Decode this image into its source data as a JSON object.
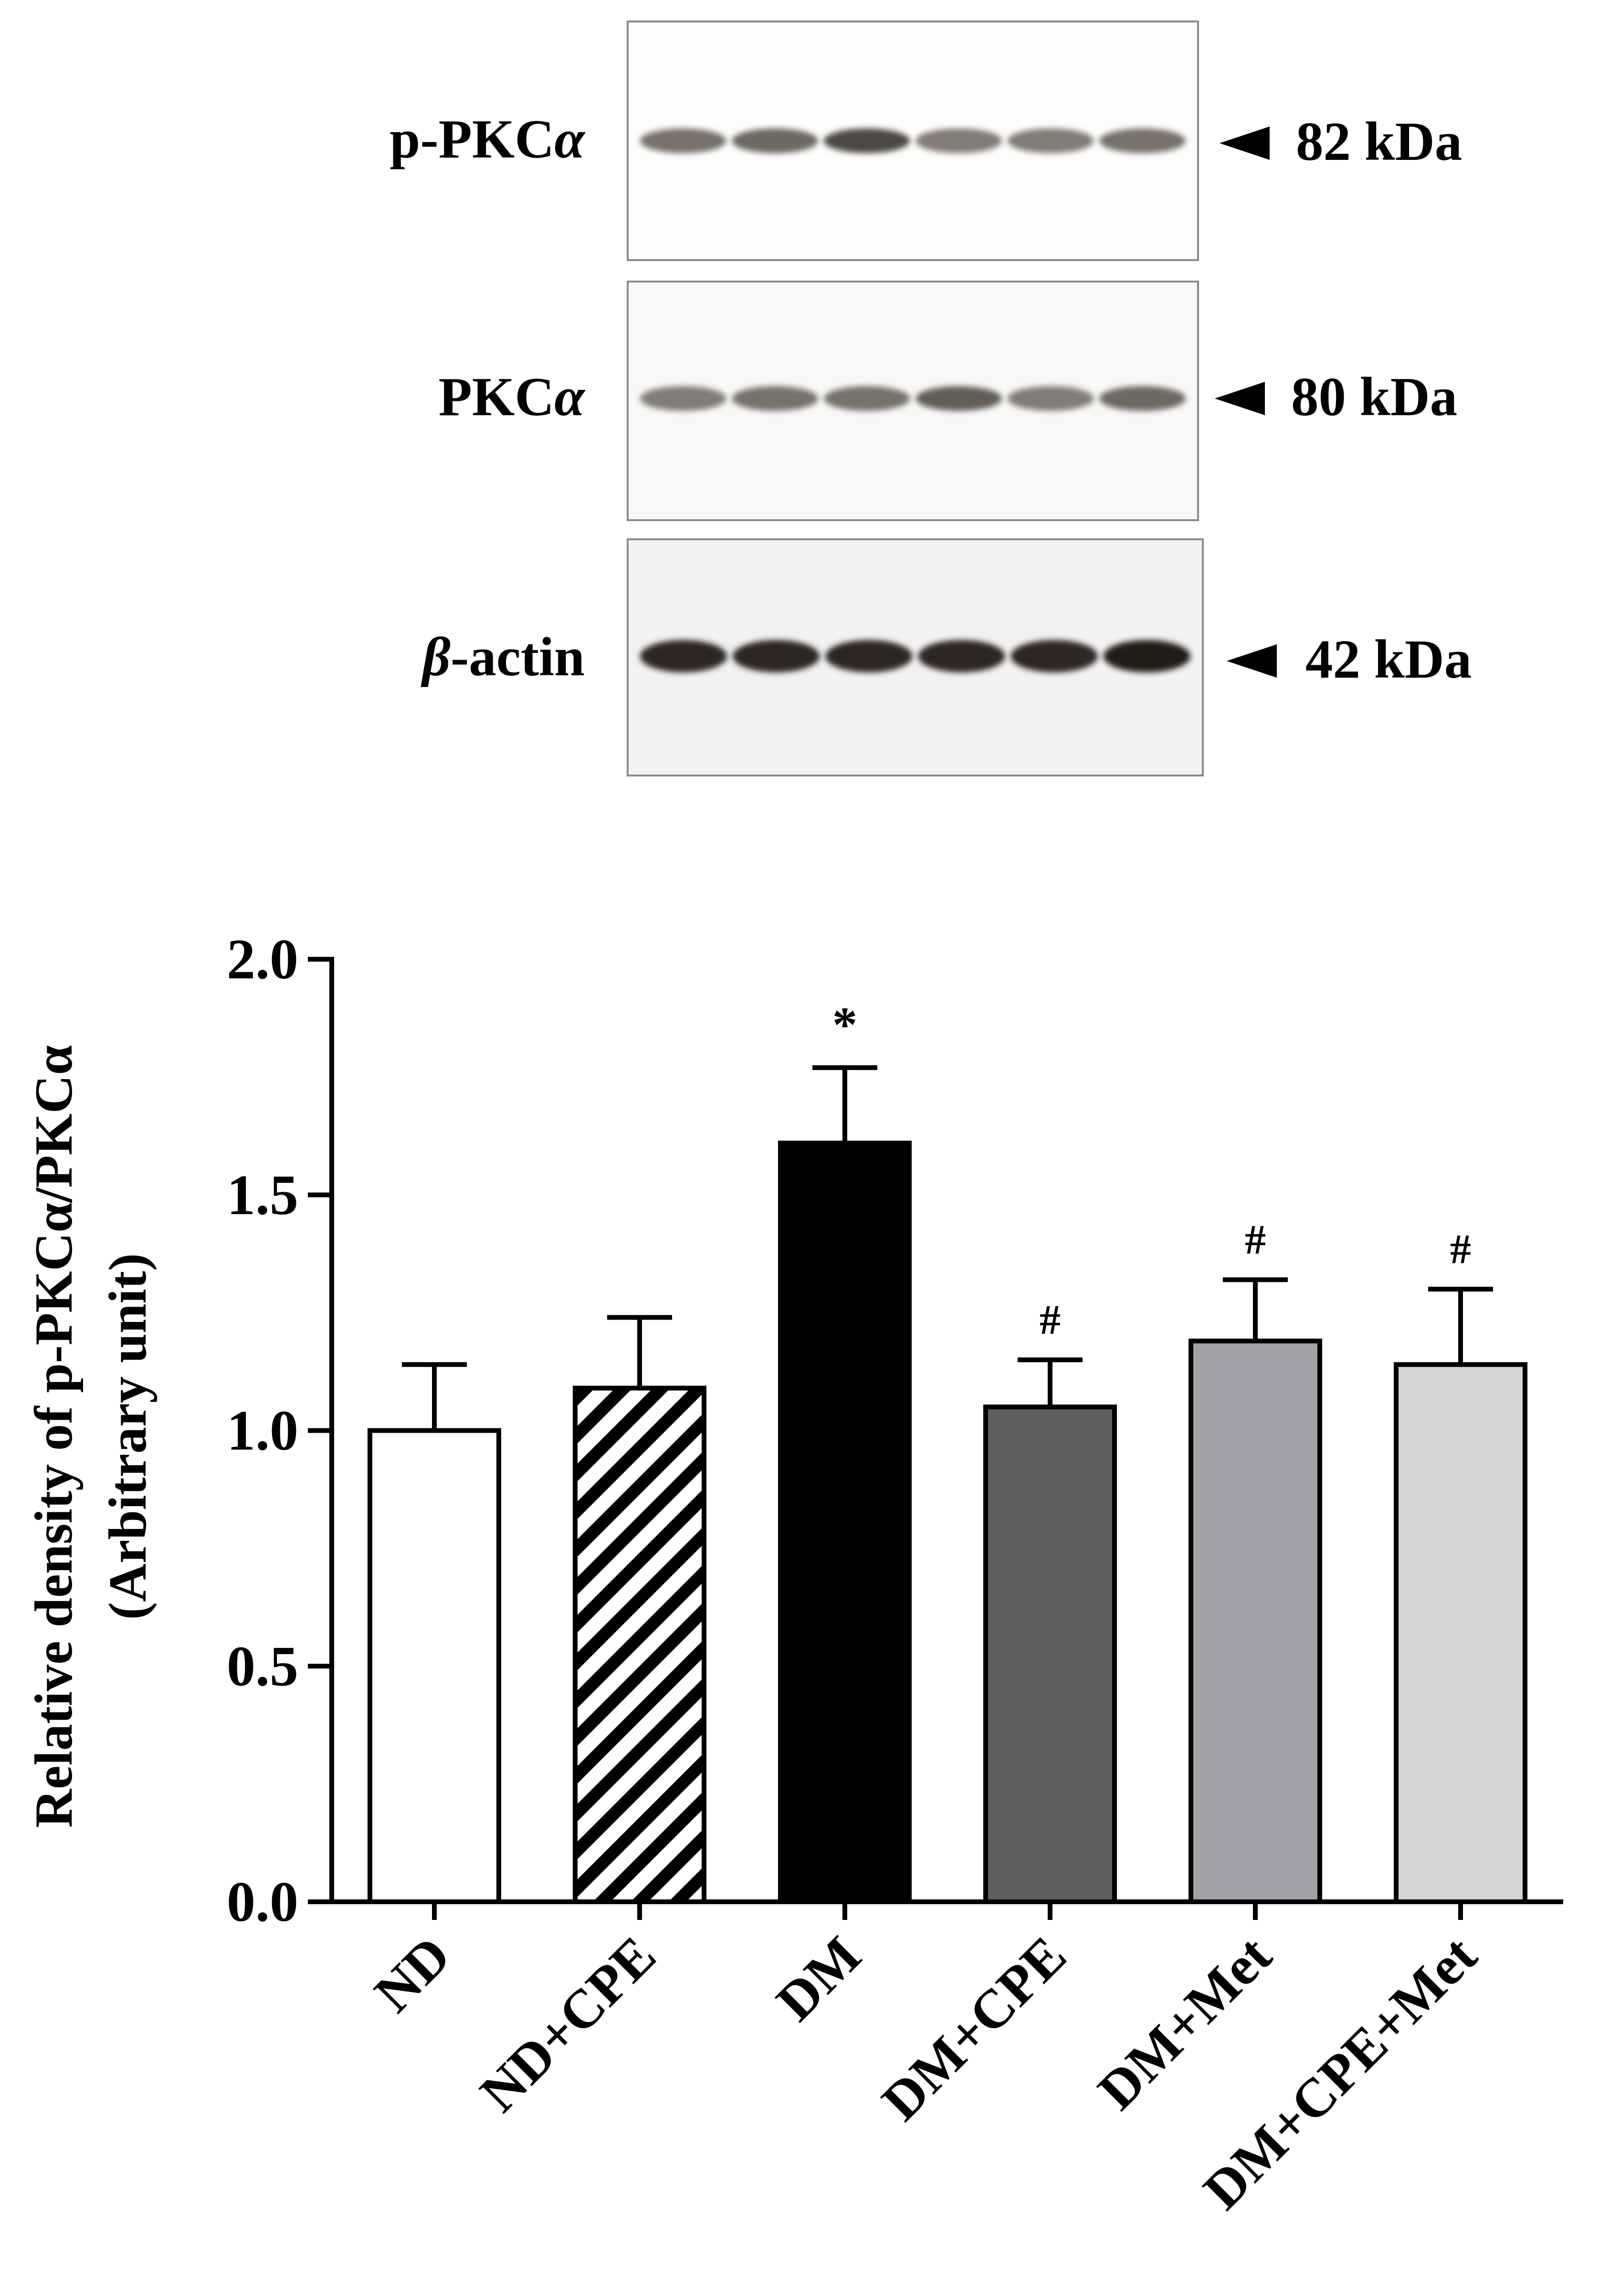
{
  "blot": {
    "lanes": 6,
    "rows": [
      {
        "label": "p-PKC",
        "label_symbol": "α",
        "marker": "82 kDa",
        "intensities": [
          0.55,
          0.6,
          0.75,
          0.5,
          0.5,
          0.55
        ]
      },
      {
        "label": "PKC",
        "label_symbol": "α",
        "marker": "80 kDa",
        "intensities": [
          0.5,
          0.55,
          0.55,
          0.65,
          0.5,
          0.6
        ]
      },
      {
        "label": "-actin",
        "label_prefix": "β",
        "marker": "42 kDa",
        "intensities": [
          0.9,
          0.9,
          0.9,
          0.9,
          0.9,
          0.95
        ]
      }
    ]
  },
  "chart_data": {
    "type": "bar",
    "categories": [
      "ND",
      "ND+CPE",
      "DM",
      "DM+CPE",
      "DM+Met",
      "DM+CPE+Met"
    ],
    "values": [
      1.0,
      1.09,
      1.61,
      1.05,
      1.19,
      1.14
    ],
    "errors": [
      0.14,
      0.15,
      0.16,
      0.1,
      0.13,
      0.16
    ],
    "annotations": [
      "",
      "",
      "*",
      "#",
      "#",
      "#"
    ],
    "fills": [
      "#ffffff",
      "hatch",
      "#000000",
      "#5f5f5f",
      "#a2a1a6",
      "#d5d5d5"
    ],
    "ylabel_line1": "Relative density of p-PKCα/PKCα",
    "ylabel_line2": "(Arbitrary unit)",
    "yticks": [
      "0.0",
      "0.5",
      "1.0",
      "1.5",
      "2.0"
    ],
    "ylim": [
      0,
      2.0
    ],
    "grid": false
  }
}
